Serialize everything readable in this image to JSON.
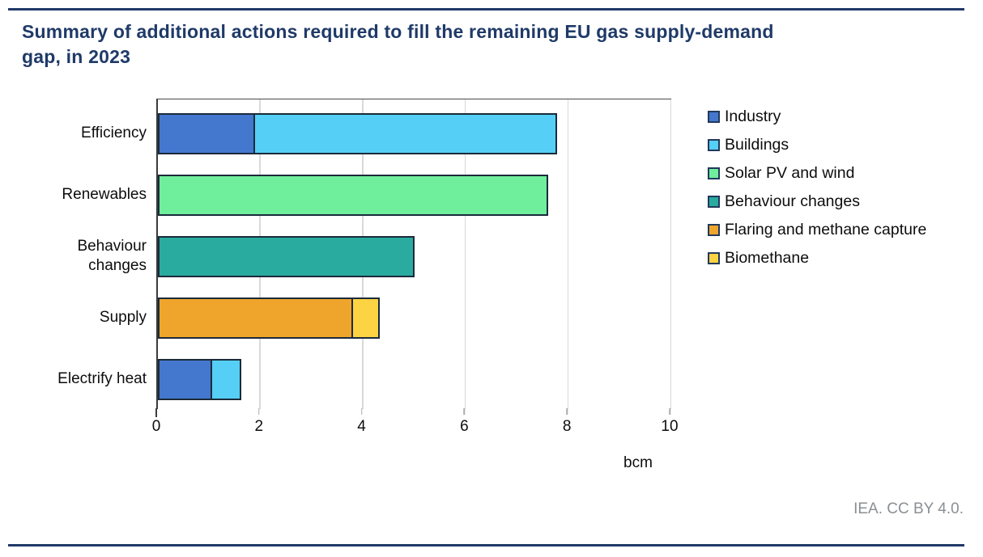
{
  "header": {
    "title": "Summary of additional actions required to fill the remaining EU gas supply-demand\ngap, in 2023"
  },
  "chart_data": {
    "type": "bar",
    "orientation": "horizontal",
    "stacked": true,
    "title": "Summary of additional actions required to fill the remaining EU gas supply-demand gap, in 2023",
    "categories": [
      "Efficiency",
      "Renewables",
      "Behaviour\nchanges",
      "Supply",
      "Electrify heat"
    ],
    "series": [
      {
        "name": "Industry",
        "color": "#4477CE",
        "values": [
          1.9,
          0,
          0,
          0,
          1.05
        ]
      },
      {
        "name": "Buildings",
        "color": "#55CFF5",
        "values": [
          5.9,
          0,
          0,
          0,
          0.6
        ]
      },
      {
        "name": "Solar PV and wind",
        "color": "#6FEE9B",
        "values": [
          0,
          7.6,
          0,
          0,
          0
        ]
      },
      {
        "name": "Behaviour changes",
        "color": "#29ABA0",
        "values": [
          0,
          0,
          5.0,
          0,
          0
        ]
      },
      {
        "name": "Flaring and methane capture",
        "color": "#EFA52B",
        "values": [
          0,
          0,
          0,
          3.8,
          0
        ]
      },
      {
        "name": "Biomethane",
        "color": "#FCD343",
        "values": [
          0,
          0,
          0,
          0.55,
          0
        ]
      }
    ],
    "totals": [
      7.8,
      7.6,
      5.0,
      4.35,
      1.65
    ],
    "xlabel": "bcm",
    "xlim": [
      0,
      10
    ],
    "xticks": [
      0,
      2,
      4,
      6,
      8,
      10
    ],
    "grid": true,
    "legend_position": "right"
  },
  "footer": {
    "attribution": "IEA. CC BY 4.0."
  },
  "colors": {
    "accent_navy": "#1f3a68",
    "gridline": "#d9d9d9",
    "bar_border": "#1b2a3a",
    "footer_gray": "#8a8f94"
  }
}
